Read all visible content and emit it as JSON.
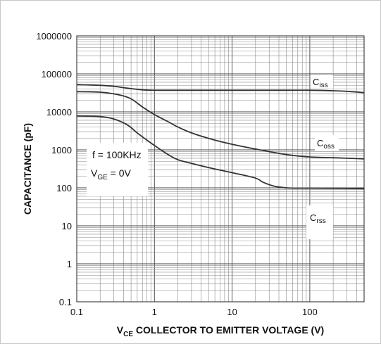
{
  "chart_data": {
    "type": "line",
    "title": "",
    "xscale": "log",
    "yscale": "log",
    "xlim": [
      0.1,
      500
    ],
    "ylim": [
      0.1,
      1000000
    ],
    "xticks": [
      "0.1",
      "1",
      "10",
      "100"
    ],
    "yticks": [
      "0.1",
      "1",
      "10",
      "100",
      "1000",
      "10000",
      "100000",
      "1000000"
    ],
    "xlabel": {
      "main": "V",
      "sub": "CE",
      "rest": " COLLECTOR TO EMITTER VOLTAGE (V)"
    },
    "ylabel": "CAPACITANCE (pF)",
    "grid": true,
    "annotation": {
      "line1": "f = 100KHz",
      "line2_main": "V",
      "line2_sub": "GE",
      "line2_rest": " = 0V"
    },
    "series": [
      {
        "label_main": "C",
        "label_sub": "iss",
        "x": [
          0.1,
          0.2,
          0.3,
          0.45,
          0.7,
          1,
          2,
          5,
          10,
          20,
          50,
          100,
          200,
          350,
          500
        ],
        "y": [
          52000,
          50000,
          47000,
          42000,
          38000,
          37000,
          37000,
          37000,
          37000,
          37000,
          37000,
          37000,
          36000,
          34000,
          32000
        ]
      },
      {
        "label_main": "C",
        "label_sub": "oss",
        "x": [
          0.1,
          0.2,
          0.35,
          0.5,
          0.7,
          1,
          1.5,
          2,
          3,
          5,
          10,
          20,
          50,
          100,
          200,
          500
        ],
        "y": [
          34000,
          33000,
          28000,
          22000,
          13500,
          8500,
          5500,
          4000,
          2800,
          2000,
          1400,
          1050,
          750,
          650,
          620,
          580
        ]
      },
      {
        "label_main": "C",
        "label_sub": "rss",
        "x": [
          0.1,
          0.2,
          0.3,
          0.45,
          0.6,
          0.8,
          1,
          1.5,
          2,
          3,
          5,
          10,
          20,
          25,
          35,
          50,
          70,
          100,
          200,
          500
        ],
        "y": [
          7800,
          7500,
          6500,
          4500,
          2800,
          1800,
          1300,
          750,
          550,
          440,
          340,
          250,
          180,
          140,
          110,
          100,
          98,
          98,
          97,
          95
        ]
      }
    ]
  }
}
